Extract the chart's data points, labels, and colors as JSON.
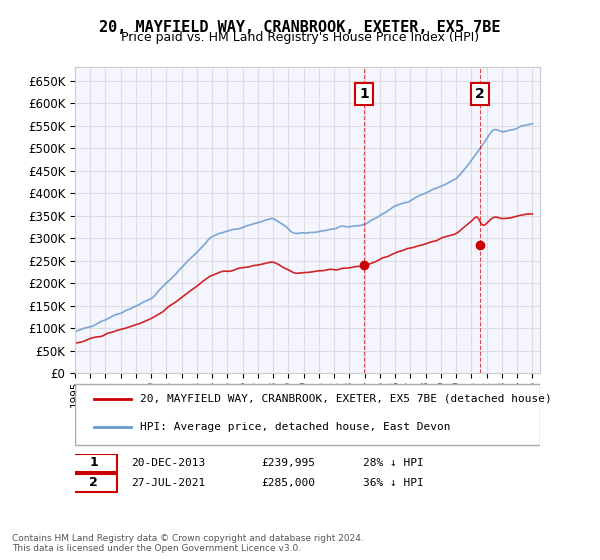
{
  "title": "20, MAYFIELD WAY, CRANBROOK, EXETER, EX5 7BE",
  "subtitle": "Price paid vs. HM Land Registry's House Price Index (HPI)",
  "legend_label_red": "20, MAYFIELD WAY, CRANBROOK, EXETER, EX5 7BE (detached house)",
  "legend_label_blue": "HPI: Average price, detached house, East Devon",
  "annotation1_label": "1",
  "annotation1_date": "20-DEC-2013",
  "annotation1_price": 239995,
  "annotation1_pct": "28% ↓ HPI",
  "annotation2_label": "2",
  "annotation2_date": "27-JUL-2021",
  "annotation2_price": 285000,
  "annotation2_pct": "36% ↓ HPI",
  "footer": "Contains HM Land Registry data © Crown copyright and database right 2024.\nThis data is licensed under the Open Government Licence v3.0.",
  "ylim": [
    0,
    680000
  ],
  "yticks": [
    0,
    50000,
    100000,
    150000,
    200000,
    250000,
    300000,
    350000,
    400000,
    450000,
    500000,
    550000,
    600000,
    650000
  ],
  "red_color": "#cc0000",
  "blue_color": "#6699cc",
  "grid_color": "#dddddd",
  "background_color": "#ffffff",
  "plot_bg_color": "#f5f5ff",
  "annotation_vline_color": "#cc0000",
  "annotation_box_color": "#cc0000"
}
